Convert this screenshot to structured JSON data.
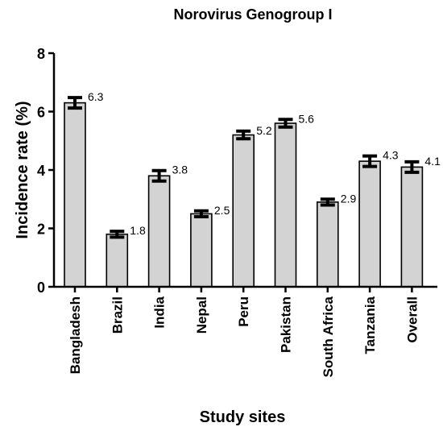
{
  "chart_data": {
    "type": "bar",
    "title": "Norovirus Genogroup I",
    "xlabel": "Study sites",
    "ylabel": "Incidence rate (%)",
    "ylim": [
      0,
      8
    ],
    "yticks": [
      "0",
      "2",
      "4",
      "6",
      "8"
    ],
    "categories": [
      "Bangladesh",
      "Brazil",
      "India",
      "Nepal",
      "Peru",
      "Pakistan",
      "South Africa",
      "Tanzania",
      "Overall"
    ],
    "values": [
      6.3,
      1.8,
      3.8,
      2.5,
      5.2,
      5.6,
      2.9,
      4.3,
      4.1
    ],
    "value_labels": [
      "6.3",
      "1.8",
      "3.8",
      "2.5",
      "5.2",
      "5.6",
      "2.9",
      "4.3",
      "4.1"
    ],
    "error": [
      0.18,
      0.1,
      0.18,
      0.1,
      0.13,
      0.13,
      0.1,
      0.18,
      0.18
    ],
    "bar_color": "#d3d3d3",
    "grid": false
  }
}
